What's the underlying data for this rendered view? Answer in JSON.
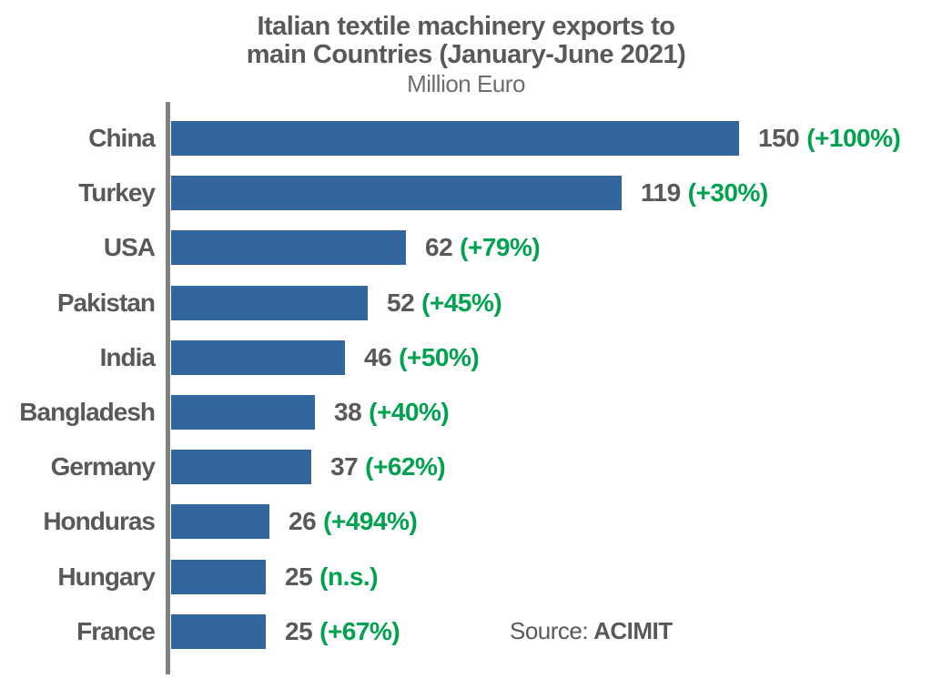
{
  "header": {
    "title_line1": "Italian textile machinery exports to",
    "title_line2": "main Countries (January-June 2021)",
    "subtitle": "Million Euro"
  },
  "source": {
    "label": "Source:",
    "name": "ACIMIT"
  },
  "colors": {
    "bar": "#33669c",
    "label_text": "#58595b",
    "growth_text": "#00a24f",
    "axis": "#7f8082",
    "subtitle_text": "#6d6e71"
  },
  "chart_data": {
    "type": "bar",
    "orientation": "horizontal",
    "title": "Italian textile machinery exports to main Countries (January-June 2021)",
    "ylabel": "",
    "xlabel": "Million Euro",
    "unit": "Million Euro",
    "categories": [
      "China",
      "Turkey",
      "USA",
      "Pakistan",
      "India",
      "Bangladesh",
      "Germany",
      "Honduras",
      "Hungary",
      "France"
    ],
    "values": [
      150,
      119,
      62,
      52,
      46,
      38,
      37,
      26,
      25,
      25
    ],
    "growth_labels": [
      "(+100%)",
      "(+30%)",
      "(+79%)",
      "(+45%)",
      "(+50%)",
      "(+40%)",
      "(+62%)",
      "(+494%)",
      "(n.s.)",
      "(+67%)"
    ],
    "xlim": [
      0,
      150
    ],
    "grid": false,
    "legend": false,
    "source": "Source: ACIMIT"
  }
}
